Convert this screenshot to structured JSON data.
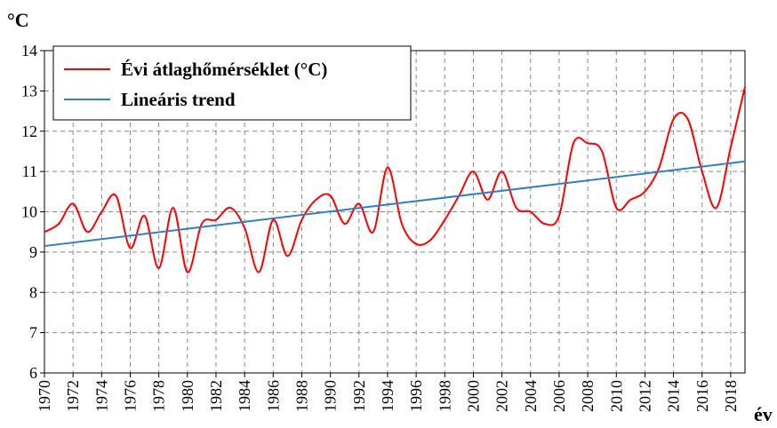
{
  "chart_data": {
    "type": "line",
    "y_label": "°C",
    "x_label": "év",
    "xlim": [
      1970,
      2019
    ],
    "ylim": [
      6,
      14
    ],
    "xticks": [
      1970,
      1972,
      1974,
      1976,
      1978,
      1980,
      1982,
      1984,
      1986,
      1988,
      1990,
      1992,
      1994,
      1996,
      1998,
      2000,
      2002,
      2004,
      2006,
      2008,
      2010,
      2012,
      2014,
      2016,
      2018
    ],
    "yticks": [
      6,
      7,
      8,
      9,
      10,
      11,
      12,
      13,
      14
    ],
    "grid": true,
    "legend": "upper left",
    "series": [
      {
        "name": "Évi átlaghőmérséklet (°C)",
        "color": "#ff0000",
        "smooth": true,
        "x": [
          1970,
          1971,
          1972,
          1973,
          1974,
          1975,
          1976,
          1977,
          1978,
          1979,
          1980,
          1981,
          1982,
          1983,
          1984,
          1985,
          1986,
          1987,
          1988,
          1989,
          1990,
          1991,
          1992,
          1993,
          1994,
          1995,
          1996,
          1997,
          1998,
          1999,
          2000,
          2001,
          2002,
          2003,
          2004,
          2005,
          2006,
          2007,
          2008,
          2009,
          2010,
          2011,
          2012,
          2013,
          2014,
          2015,
          2016,
          2017,
          2018,
          2019
        ],
        "values": [
          9.5,
          9.7,
          10.2,
          9.5,
          10.0,
          10.4,
          9.1,
          9.9,
          8.6,
          10.1,
          8.5,
          9.7,
          9.8,
          10.1,
          9.6,
          8.5,
          9.8,
          8.9,
          9.8,
          10.3,
          10.4,
          9.7,
          10.2,
          9.5,
          11.1,
          9.7,
          9.2,
          9.3,
          9.8,
          10.4,
          11.0,
          10.3,
          11.0,
          10.1,
          10.0,
          9.7,
          9.9,
          11.7,
          11.7,
          11.5,
          10.1,
          10.3,
          10.5,
          11.1,
          12.3,
          12.3,
          11.0,
          10.1,
          11.6,
          13.1
        ]
      },
      {
        "name": "Lineáris trend",
        "color": "#2f7fc1",
        "smooth": false,
        "x": [
          1970,
          2019
        ],
        "values": [
          9.15,
          11.25
        ]
      }
    ]
  }
}
